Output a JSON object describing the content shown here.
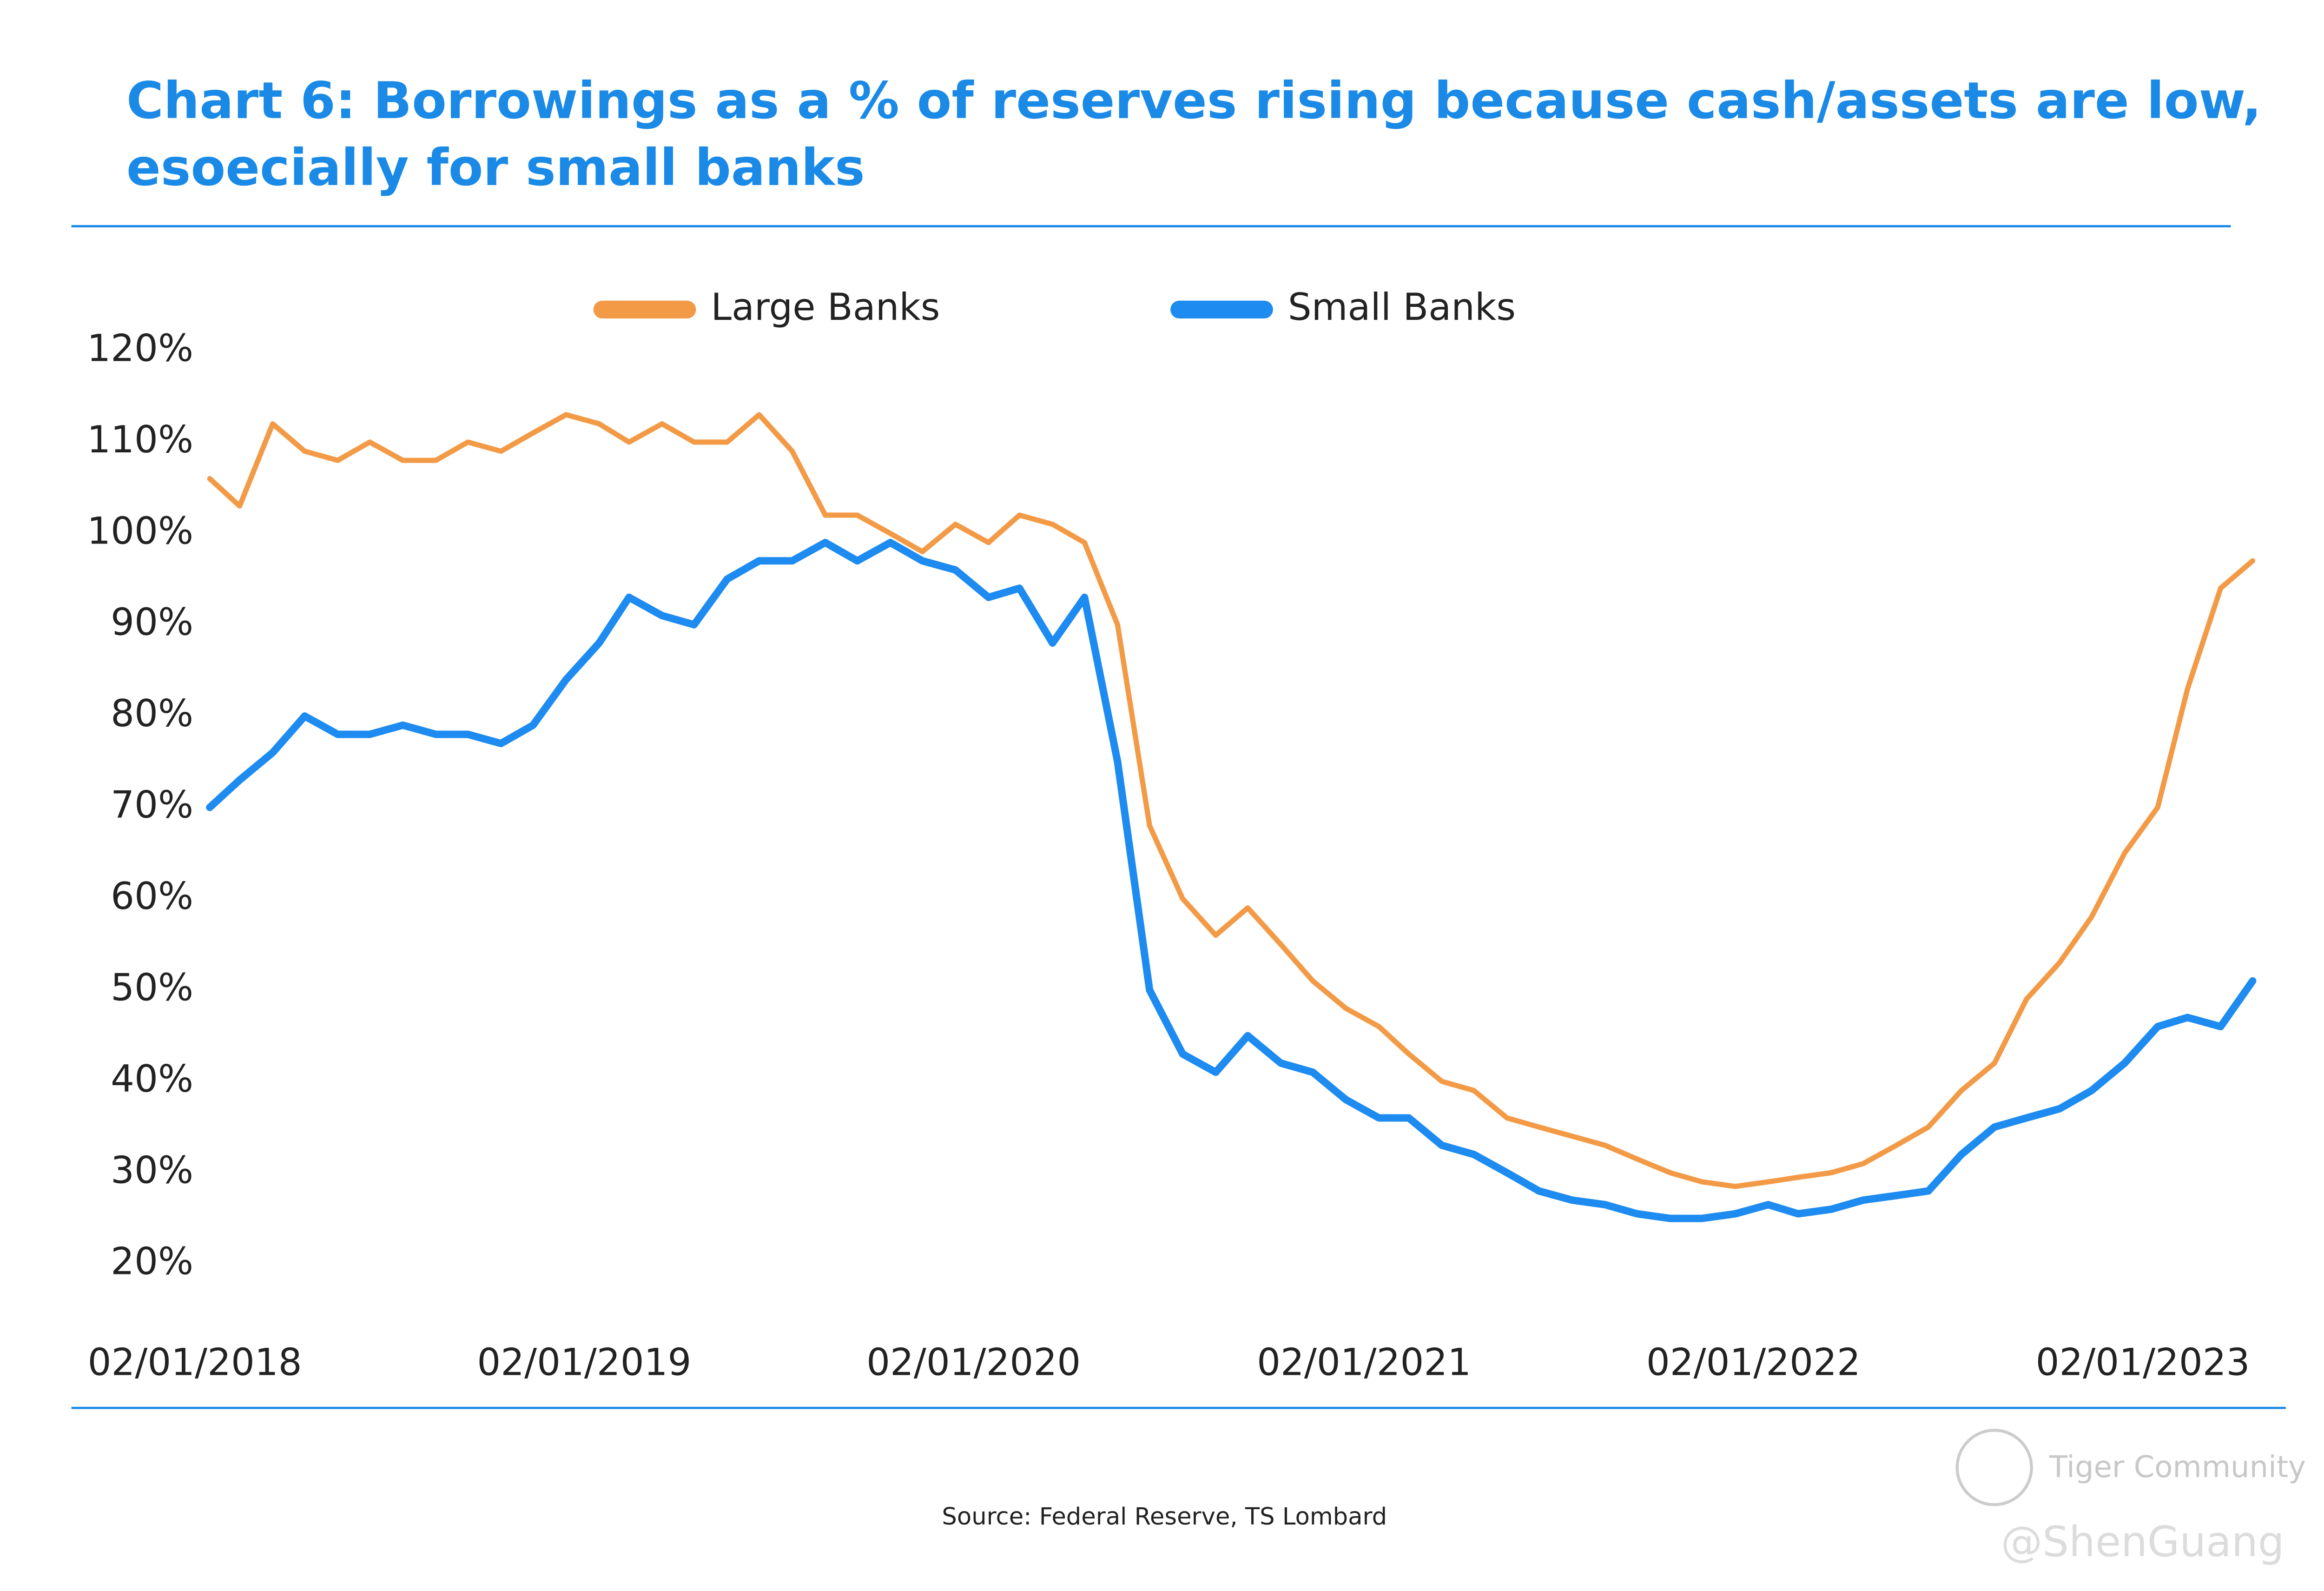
{
  "chart_data": {
    "type": "line",
    "title": [
      "Chart 6: Borrowings as a % of reserves rising because cash/assets are low,",
      "esoecially for small banks"
    ],
    "source": "Source: Federal Reserve, TS Lombard",
    "watermarks": [
      "Tiger Community",
      "@ShenGuang"
    ],
    "x": [
      "02/15/2018",
      "03/15/2018",
      "04/15/2018",
      "05/15/2018",
      "06/15/2018",
      "07/15/2018",
      "08/15/2018",
      "09/15/2018",
      "10/15/2018",
      "11/15/2018",
      "12/15/2018",
      "01/15/2019",
      "02/15/2019",
      "03/15/2019",
      "04/15/2019",
      "05/15/2019",
      "06/15/2019",
      "07/15/2019",
      "08/15/2019",
      "09/15/2019",
      "10/15/2019",
      "11/15/2019",
      "12/15/2019",
      "01/15/2020",
      "02/15/2020",
      "03/15/2020",
      "04/15/2020",
      "05/15/2020",
      "06/15/2020",
      "07/15/2020",
      "08/15/2020",
      "09/15/2020",
      "10/15/2020",
      "11/15/2020",
      "12/15/2020",
      "01/15/2021",
      "02/15/2021",
      "03/15/2021",
      "04/15/2021",
      "05/15/2021",
      "06/15/2021",
      "07/15/2021",
      "08/15/2021",
      "09/15/2021",
      "10/15/2021",
      "11/15/2021",
      "12/15/2021",
      "01/15/2022",
      "02/15/2022",
      "03/15/2022",
      "04/15/2022",
      "05/15/2022",
      "06/15/2022",
      "07/15/2022",
      "08/15/2022",
      "09/15/2022",
      "10/15/2022",
      "11/15/2022",
      "12/15/2022",
      "01/15/2023",
      "02/15/2023",
      "03/15/2023",
      "04/15/2023",
      "05/15/2023"
    ],
    "series": [
      {
        "name": "Large Banks",
        "color": "#f39a47",
        "values": [
          106,
          103,
          112,
          109,
          108,
          110,
          108,
          108,
          110,
          109,
          111,
          113,
          112,
          110,
          112,
          110,
          110,
          113,
          109,
          102,
          102,
          100,
          98,
          101,
          99,
          102,
          101,
          99,
          90,
          68,
          60,
          56,
          59,
          55,
          51,
          48,
          46,
          43,
          40,
          39,
          36,
          35,
          34,
          33,
          31.5,
          30,
          29,
          28.5,
          29,
          29.5,
          30,
          31,
          33,
          35,
          39,
          42,
          49,
          53,
          58,
          65,
          70,
          83,
          94,
          97
        ]
      },
      {
        "name": "Small Banks",
        "color": "#1d8bf0",
        "values": [
          70,
          73,
          76,
          80,
          78,
          78,
          79,
          78,
          78,
          77,
          79,
          84,
          88,
          93,
          91,
          90,
          95,
          97,
          97,
          99,
          97,
          99,
          97,
          96,
          93,
          94,
          88,
          93,
          75,
          50,
          43,
          41,
          45,
          42,
          41,
          38,
          36,
          36,
          33,
          32,
          30,
          28,
          27,
          26.5,
          25.5,
          25,
          25,
          25.5,
          26.5,
          25.5,
          26,
          27,
          27.5,
          28,
          32,
          35,
          36,
          37,
          39,
          42,
          46,
          47,
          46,
          51
        ]
      }
    ],
    "ylim": [
      15,
      125
    ],
    "yticks": [
      {
        "value": 20,
        "label": "20%"
      },
      {
        "value": 30,
        "label": "30%"
      },
      {
        "value": 40,
        "label": "40%"
      },
      {
        "value": 50,
        "label": "50%"
      },
      {
        "value": 60,
        "label": "60%"
      },
      {
        "value": 70,
        "label": "70%"
      },
      {
        "value": 80,
        "label": "80%"
      },
      {
        "value": 90,
        "label": "90%"
      },
      {
        "value": 100,
        "label": "100%"
      },
      {
        "value": 110,
        "label": "110%"
      },
      {
        "value": 120,
        "label": "120%"
      }
    ],
    "xticks": [
      "02/01/2018",
      "02/01/2019",
      "02/01/2020",
      "02/01/2021",
      "02/01/2022",
      "02/01/2023"
    ],
    "grid": false
  }
}
